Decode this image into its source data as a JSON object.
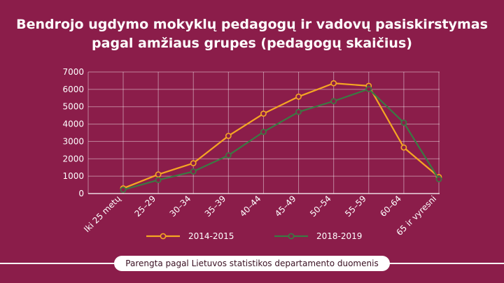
{
  "title_line1": "Bendrojo ugdymo mokyklų pedagogų ir vadovų pasiskirstymas",
  "title_line2": "pagal amžiaus grupes (pedagogų skaičius)",
  "footer": "Parengta pagal Lietuvos statistikos departamento duomenis",
  "colors": {
    "background": "#8b1d4a",
    "series_2014": "#f5a623",
    "series_2018": "#3a7a43"
  },
  "chart_data": {
    "type": "line",
    "title": "Bendrojo ugdymo mokyklų pedagogų ir vadovų pasiskirstymas pagal amžiaus grupes (pedagogų skaičius)",
    "xlabel": "",
    "ylabel": "",
    "ylim": [
      0,
      7000
    ],
    "yticks": [
      0,
      1000,
      2000,
      3000,
      4000,
      5000,
      6000,
      7000
    ],
    "grid": true,
    "legend_position": "bottom",
    "categories": [
      "Iki 25 metų",
      "25–29",
      "30–34",
      "35–39",
      "40–44",
      "45–49",
      "50–54",
      "55–59",
      "60–64",
      "65 ir vyresni"
    ],
    "series": [
      {
        "name": "2014-2015",
        "color": "#f5a623",
        "values": [
          300,
          1100,
          1750,
          3320,
          4600,
          5580,
          6350,
          6200,
          2650,
          950
        ]
      },
      {
        "name": "2018-2019",
        "color": "#3a7a43",
        "values": [
          220,
          780,
          1270,
          2200,
          3550,
          4700,
          5320,
          6020,
          4080,
          830
        ]
      }
    ]
  }
}
